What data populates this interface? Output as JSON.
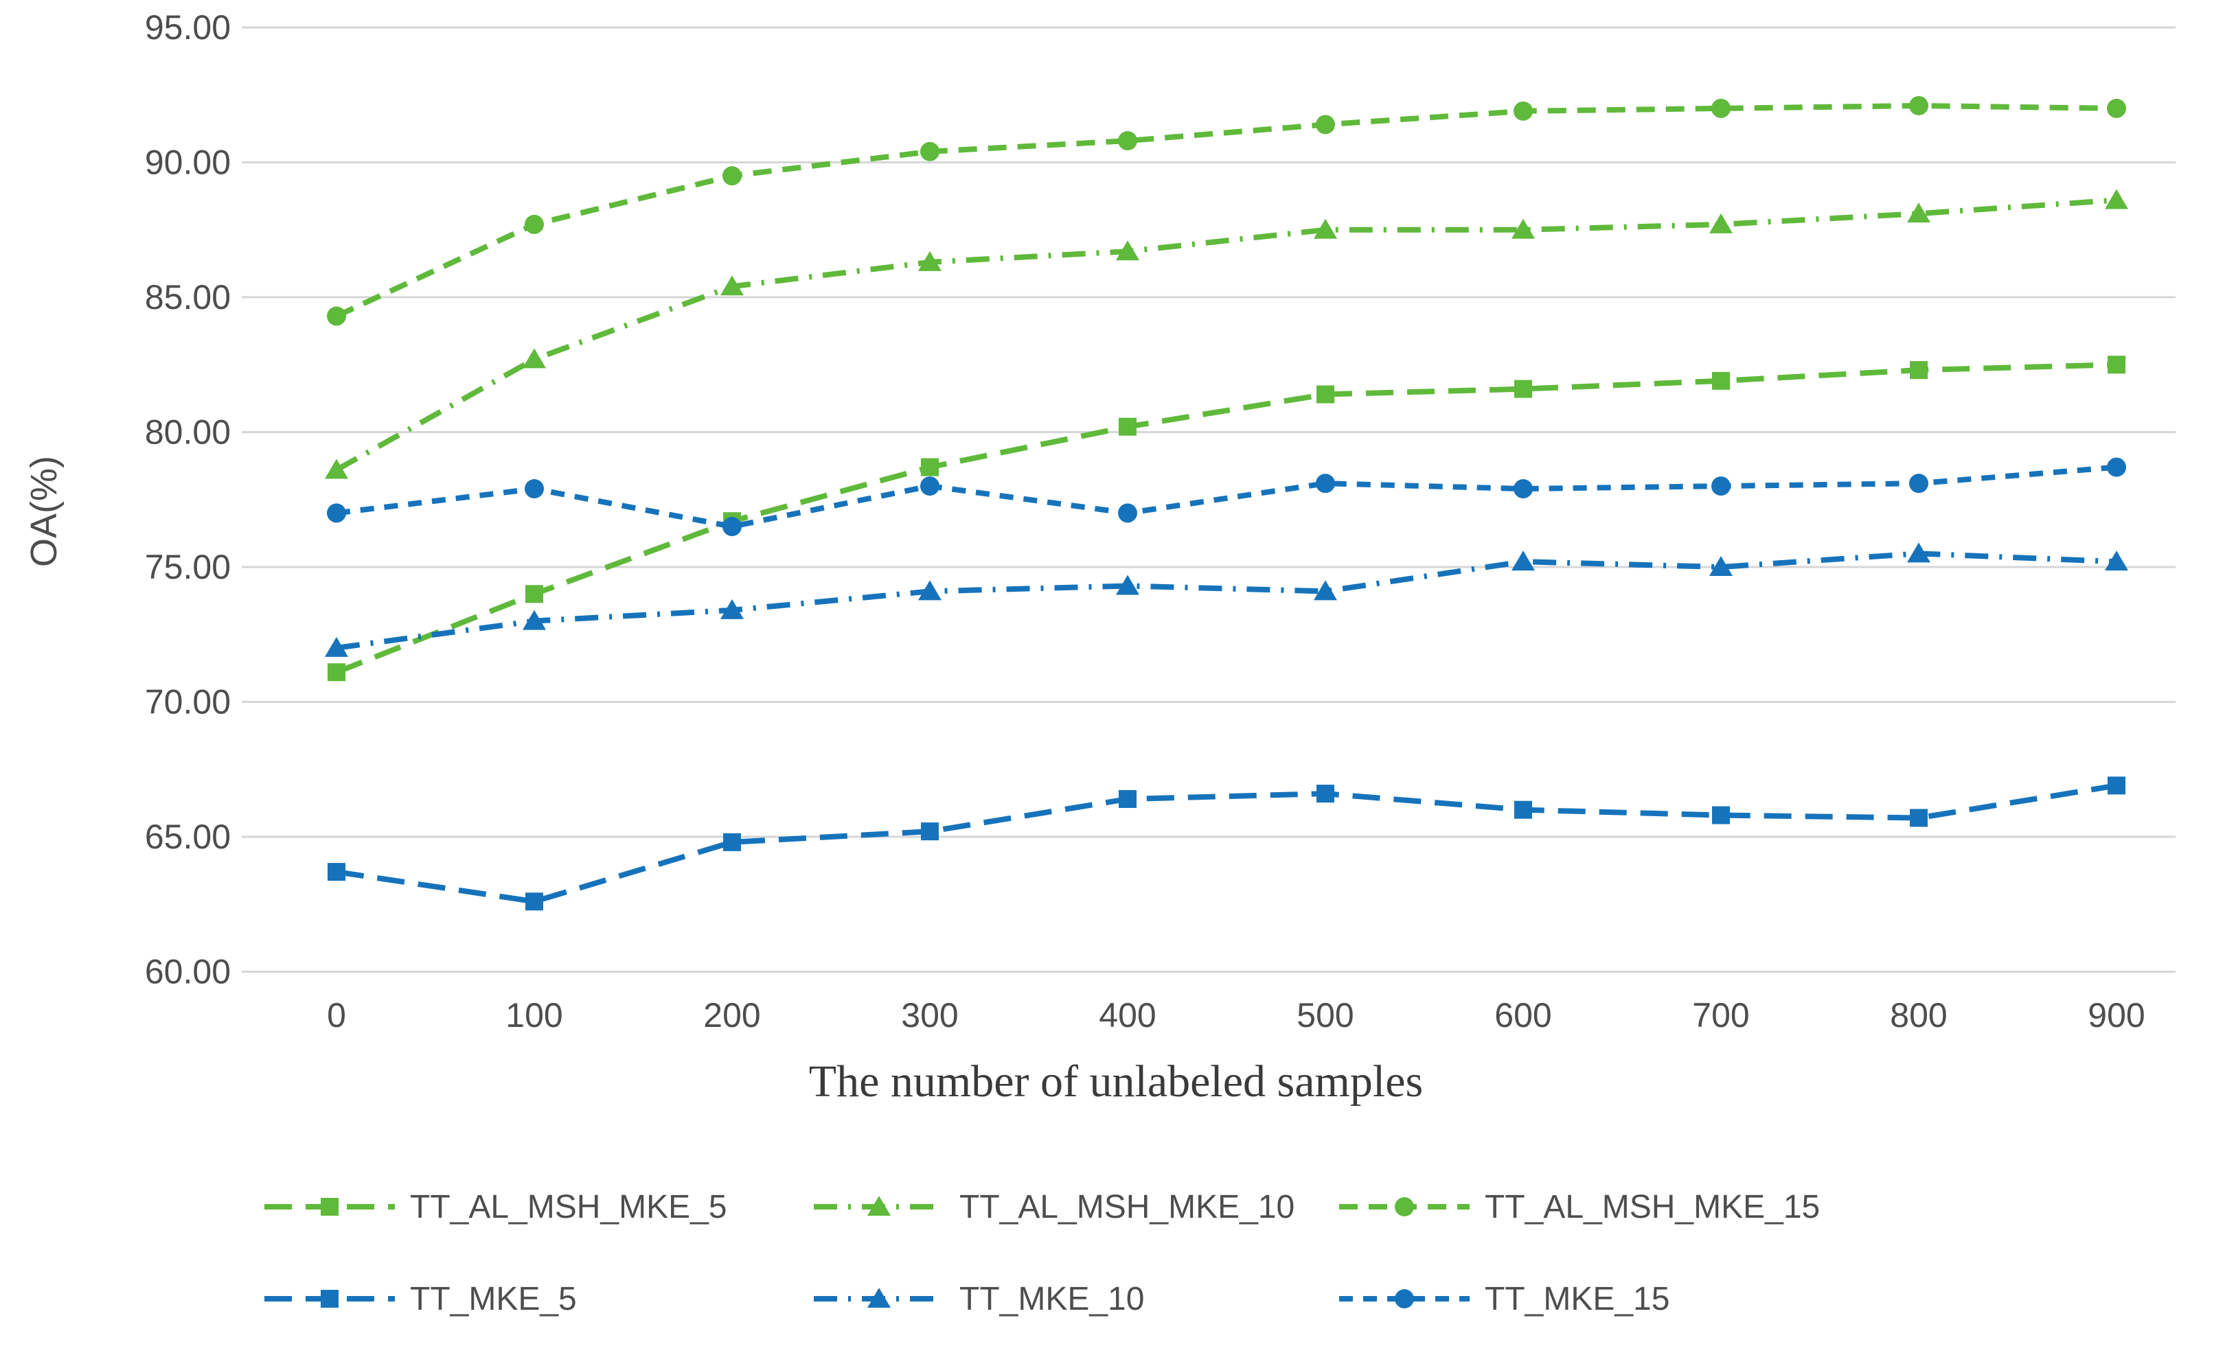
{
  "chart_data": {
    "type": "line",
    "title": "",
    "xlabel": "The number of unlabeled samples",
    "ylabel": "OA(%)",
    "x": [
      0,
      100,
      200,
      300,
      400,
      500,
      600,
      700,
      800,
      900
    ],
    "x_tick_labels": [
      "0",
      "100",
      "200",
      "300",
      "400",
      "500",
      "600",
      "700",
      "800",
      "900"
    ],
    "y_tick_labels": [
      "95.00",
      "90.00",
      "85.00",
      "80.00",
      "75.00",
      "70.00",
      "65.00",
      "60.00"
    ],
    "y_ticks": [
      95,
      90,
      85,
      80,
      75,
      70,
      65,
      60
    ],
    "ylim": [
      60,
      95
    ],
    "grid": "horizontal",
    "legend_position": "bottom",
    "series": [
      {
        "name": "TT_AL_MSH_MKE_5",
        "color": "#5FB93A",
        "marker": "square",
        "line_style": "dash",
        "values": [
          71.1,
          74.0,
          76.7,
          78.7,
          80.2,
          81.4,
          81.6,
          81.9,
          82.3,
          82.5
        ]
      },
      {
        "name": "TT_AL_MSH_MKE_10",
        "color": "#5FB93A",
        "marker": "triangle",
        "line_style": "dash-dot",
        "values": [
          78.6,
          82.7,
          85.4,
          86.3,
          86.7,
          87.5,
          87.5,
          87.7,
          88.1,
          88.6
        ]
      },
      {
        "name": "TT_AL_MSH_MKE_15",
        "color": "#5FB93A",
        "marker": "circle",
        "line_style": "medium-dash",
        "values": [
          84.3,
          87.7,
          89.5,
          90.4,
          90.8,
          91.4,
          91.9,
          92.0,
          92.1,
          92.0
        ]
      },
      {
        "name": "TT_MKE_5",
        "color": "#1673BB",
        "marker": "square",
        "line_style": "dash",
        "values": [
          63.7,
          62.6,
          64.8,
          65.2,
          66.4,
          66.6,
          66.0,
          65.8,
          65.7,
          66.9
        ]
      },
      {
        "name": "TT_MKE_10",
        "color": "#1673BB",
        "marker": "triangle",
        "line_style": "dash-dot",
        "values": [
          72.0,
          73.0,
          73.4,
          74.1,
          74.3,
          74.1,
          75.2,
          75.0,
          75.5,
          75.2
        ]
      },
      {
        "name": "TT_MKE_15",
        "color": "#1673BB",
        "marker": "circle",
        "line_style": "short-dash",
        "values": [
          77.0,
          77.9,
          76.5,
          78.0,
          77.0,
          78.1,
          77.9,
          78.0,
          78.1,
          78.7
        ]
      }
    ],
    "colors": {
      "gridline": "#D6D6D6",
      "tick_text": "#4d4d4d",
      "legend_text": "#4d4d4d",
      "axis_title_text": "#3a3a3a"
    }
  }
}
